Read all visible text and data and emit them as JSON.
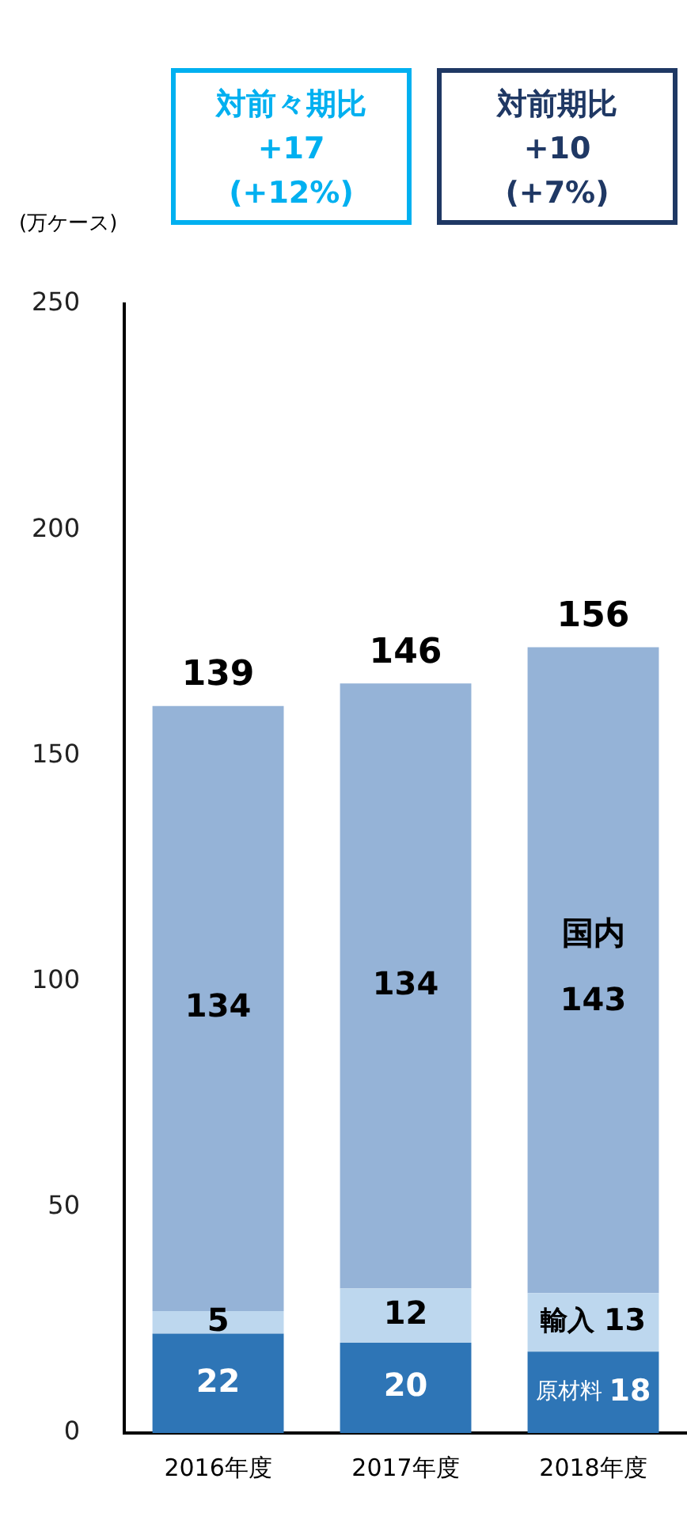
{
  "chart_data": {
    "type": "bar",
    "stacked": true,
    "ylabel": "(万ケース)",
    "categories": [
      "2016年度",
      "2017年度",
      "2018年度"
    ],
    "series": [
      {
        "name": "原材料",
        "color": "#2e75b6",
        "values": [
          22,
          20,
          18
        ]
      },
      {
        "name": "輸入",
        "color": "#bdd7ee",
        "values": [
          5,
          12,
          13
        ]
      },
      {
        "name": "国内",
        "color": "#95b3d7",
        "values": [
          134,
          134,
          143
        ]
      }
    ],
    "ylim": [
      0,
      250
    ],
    "yticks": [
      0,
      50,
      100,
      150,
      200,
      250
    ],
    "grid": false,
    "legend": false,
    "data_labels": true,
    "annotations": [
      "対前々期比\n+17\n(+12%)",
      "対前期比\n+10\n(+7%)",
      {
        "text": "139",
        "x": "2016年度",
        "y": 161
      },
      {
        "text": "146",
        "x": "2017年度",
        "y": 166
      },
      {
        "text": "156",
        "x": "2018年度",
        "y": 174
      }
    ]
  }
}
